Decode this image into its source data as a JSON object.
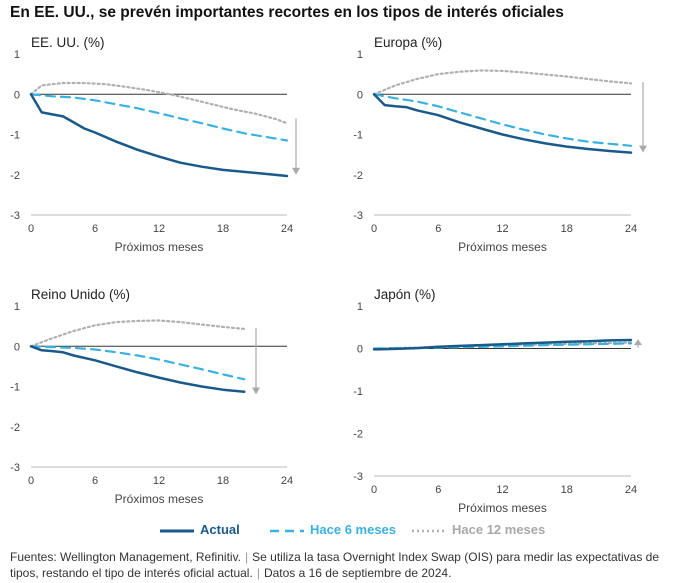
{
  "title": "En EE. UU., se prevén importantes recortes en los tipos de interés oficiales",
  "legend": {
    "actual": "Actual",
    "hace6": "Hace 6 meses",
    "hace12": "Hace 12 meses"
  },
  "colors": {
    "actual": "#1a5a8a",
    "hace6": "#3ab1de",
    "hace12": "#b0b0b0",
    "arrow": "#aaaaaa"
  },
  "footer": {
    "sources": "Fuentes: Wellington Management, Refinitiv.",
    "note": "Se utiliza la tasa Overnight Index Swap (OIS) para medir las expectativas de tipos, restando el tipo de interés oficial actual.",
    "date": "Datos a 16 de septiembre de 2024."
  },
  "chart_data": [
    {
      "type": "line",
      "title": "EE. UU. (%)",
      "xlabel": "Próximos meses",
      "xlim": [
        0,
        24
      ],
      "ylim": [
        -3,
        1
      ],
      "xticks": [
        0,
        6,
        12,
        18,
        24
      ],
      "yticks": [
        1,
        0,
        -1,
        -2,
        -3
      ],
      "arrow": "down",
      "series": [
        {
          "key": "hace12",
          "name": "Hace 12 meses",
          "x": [
            0,
            1,
            3,
            5,
            7,
            9,
            11,
            13,
            15,
            17,
            19,
            21,
            23,
            24
          ],
          "y": [
            0,
            0.22,
            0.28,
            0.28,
            0.25,
            0.18,
            0.1,
            0,
            -0.12,
            -0.25,
            -0.38,
            -0.48,
            -0.62,
            -0.72
          ]
        },
        {
          "key": "hace6",
          "name": "Hace 6 meses",
          "x": [
            0,
            2,
            4,
            6,
            8,
            10,
            12,
            14,
            16,
            18,
            20,
            22,
            24
          ],
          "y": [
            0,
            -0.05,
            -0.08,
            -0.15,
            -0.25,
            -0.35,
            -0.47,
            -0.6,
            -0.72,
            -0.85,
            -0.97,
            -1.06,
            -1.15
          ]
        },
        {
          "key": "actual",
          "name": "Actual",
          "x": [
            0,
            1,
            2,
            3,
            4,
            5,
            6,
            8,
            10,
            12,
            14,
            16,
            18,
            20,
            22,
            24
          ],
          "y": [
            0,
            -0.45,
            -0.5,
            -0.55,
            -0.7,
            -0.85,
            -0.95,
            -1.18,
            -1.38,
            -1.55,
            -1.7,
            -1.8,
            -1.88,
            -1.93,
            -1.98,
            -2.03
          ]
        }
      ]
    },
    {
      "type": "line",
      "title": "Europa (%)",
      "xlabel": "Próximos meses",
      "xlim": [
        0,
        24
      ],
      "ylim": [
        -3,
        1
      ],
      "xticks": [
        0,
        6,
        12,
        18,
        24
      ],
      "yticks": [
        1,
        0,
        -1,
        -2,
        -3
      ],
      "arrow": "down",
      "series": [
        {
          "key": "hace12",
          "name": "Hace 12 meses",
          "x": [
            0,
            2,
            4,
            6,
            8,
            10,
            12,
            14,
            16,
            18,
            20,
            22,
            24
          ],
          "y": [
            0,
            0.22,
            0.38,
            0.5,
            0.56,
            0.59,
            0.58,
            0.54,
            0.49,
            0.44,
            0.38,
            0.32,
            0.27
          ]
        },
        {
          "key": "hace6",
          "name": "Hace 6 meses",
          "x": [
            0,
            2,
            4,
            6,
            8,
            10,
            12,
            14,
            16,
            18,
            20,
            22,
            24
          ],
          "y": [
            0,
            -0.1,
            -0.18,
            -0.3,
            -0.45,
            -0.6,
            -0.75,
            -0.88,
            -1.0,
            -1.1,
            -1.18,
            -1.23,
            -1.28
          ]
        },
        {
          "key": "actual",
          "name": "Actual",
          "x": [
            0,
            1,
            2,
            3,
            4,
            6,
            8,
            10,
            12,
            14,
            16,
            18,
            20,
            22,
            24
          ],
          "y": [
            0,
            -0.27,
            -0.3,
            -0.32,
            -0.4,
            -0.52,
            -0.7,
            -0.85,
            -1.0,
            -1.12,
            -1.22,
            -1.3,
            -1.36,
            -1.41,
            -1.45
          ]
        }
      ]
    },
    {
      "type": "line",
      "title": "Reino Unido (%)",
      "xlabel": "Próximos meses",
      "xlim": [
        0,
        24
      ],
      "ylim": [
        -3,
        1
      ],
      "xticks": [
        0,
        6,
        12,
        18,
        24
      ],
      "yticks": [
        1,
        0,
        -1,
        -2,
        -3
      ],
      "arrow": "down",
      "series": [
        {
          "key": "hace12",
          "name": "Hace 12 meses",
          "x": [
            0,
            2,
            4,
            6,
            8,
            10,
            12,
            14,
            16,
            18,
            20
          ],
          "y": [
            0,
            0.2,
            0.38,
            0.52,
            0.6,
            0.63,
            0.64,
            0.6,
            0.54,
            0.48,
            0.43
          ]
        },
        {
          "key": "hace6",
          "name": "Hace 6 meses",
          "x": [
            0,
            2,
            4,
            6,
            8,
            10,
            12,
            14,
            16,
            18,
            20
          ],
          "y": [
            0,
            -0.02,
            -0.04,
            -0.08,
            -0.15,
            -0.23,
            -0.33,
            -0.45,
            -0.57,
            -0.7,
            -0.82
          ]
        },
        {
          "key": "actual",
          "name": "Actual",
          "x": [
            0,
            1,
            2,
            3,
            4,
            6,
            8,
            10,
            12,
            14,
            16,
            18,
            20
          ],
          "y": [
            0,
            -0.1,
            -0.12,
            -0.15,
            -0.23,
            -0.35,
            -0.5,
            -0.65,
            -0.78,
            -0.9,
            -1.0,
            -1.08,
            -1.13
          ]
        }
      ]
    },
    {
      "type": "line",
      "title": "Japón (%)",
      "xlabel": "Próximos meses",
      "xlim": [
        0,
        24
      ],
      "ylim": [
        -3,
        1
      ],
      "xticks": [
        0,
        6,
        12,
        18,
        24
      ],
      "yticks": [
        1,
        0,
        -1,
        -2,
        -3
      ],
      "arrow": "up",
      "series": [
        {
          "key": "hace12",
          "name": "Hace 12 meses",
          "x": [
            0,
            4,
            8,
            12,
            16,
            20,
            24
          ],
          "y": [
            0,
            0.02,
            0.05,
            0.08,
            0.1,
            0.12,
            0.14
          ]
        },
        {
          "key": "hace6",
          "name": "Hace 6 meses",
          "x": [
            0,
            4,
            8,
            12,
            16,
            20,
            24
          ],
          "y": [
            0,
            0.01,
            0.03,
            0.05,
            0.08,
            0.1,
            0.12
          ]
        },
        {
          "key": "actual",
          "name": "Actual",
          "x": [
            0,
            2,
            4,
            6,
            8,
            10,
            12,
            14,
            16,
            18,
            20,
            22,
            24
          ],
          "y": [
            -0.02,
            -0.01,
            0.01,
            0.04,
            0.06,
            0.08,
            0.1,
            0.12,
            0.14,
            0.16,
            0.17,
            0.19,
            0.2
          ]
        }
      ]
    }
  ]
}
